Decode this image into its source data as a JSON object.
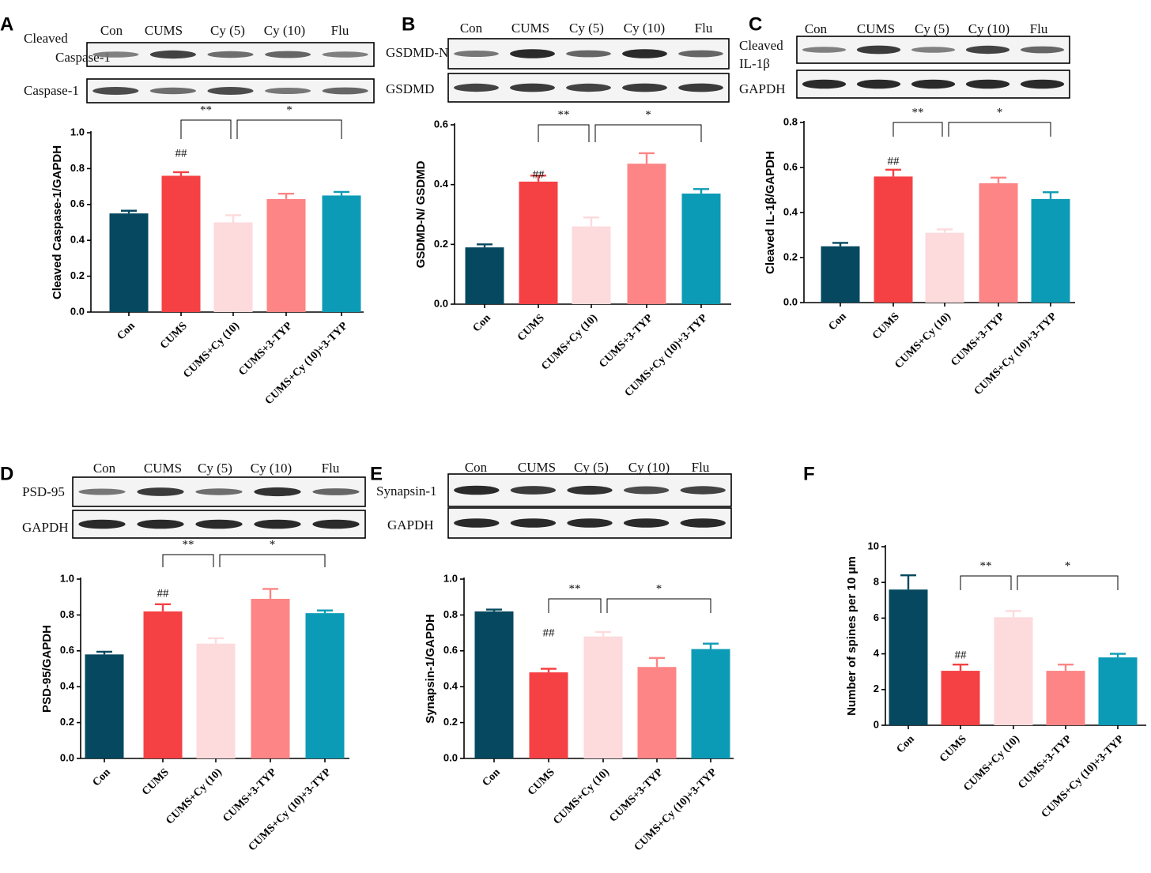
{
  "colors": [
    "#05485f",
    "#f54143",
    "#fddadc",
    "#fd8585",
    "#0c9bb6"
  ],
  "chart_data": [
    {
      "panel": "A",
      "type": "bar",
      "blot": {
        "lanes": [
          "Con",
          "CUMS",
          "Cy (5)",
          "Cy (10)",
          "Flu"
        ],
        "rows": [
          {
            "label": [
              "Cleaved",
              "Caspase-1"
            ],
            "intensity": [
              0.45,
              0.8,
              0.55,
              0.6,
              0.45
            ]
          },
          {
            "label": [
              "Caspase-1"
            ],
            "intensity": [
              0.75,
              0.55,
              0.75,
              0.5,
              0.6
            ]
          }
        ]
      },
      "categories": [
        "Con",
        "CUMS",
        "CUMS+Cy (10)",
        "CUMS+3-TYP",
        "CUMS+Cy (10)+3-TYP"
      ],
      "values": [
        0.55,
        0.76,
        0.5,
        0.63,
        0.65
      ],
      "errors": [
        0.015,
        0.02,
        0.04,
        0.03,
        0.02
      ],
      "ylabel": "Cleaved Caspase-1/GAPDH",
      "ylim": [
        0,
        1.0
      ],
      "yticks": [
        "0.0",
        "0.2",
        "0.4",
        "0.6",
        "0.8",
        "1.0"
      ],
      "hash": "##",
      "sig1": "**",
      "sig2": "*"
    },
    {
      "panel": "B",
      "type": "bar",
      "blot": {
        "lanes": [
          "Con",
          "CUMS",
          "Cy (5)",
          "Cy (10)",
          "Flu"
        ],
        "rows": [
          {
            "label": [
              "GSDMD-N"
            ],
            "intensity": [
              0.5,
              0.95,
              0.6,
              0.95,
              0.6
            ]
          },
          {
            "label": [
              "GSDMD"
            ],
            "intensity": [
              0.8,
              0.85,
              0.8,
              0.85,
              0.85
            ]
          }
        ]
      },
      "categories": [
        "Con",
        "CUMS",
        "CUMS+Cy (10)",
        "CUMS+3-TYP",
        "CUMS+Cy (10)+3-TYP"
      ],
      "values": [
        0.19,
        0.41,
        0.26,
        0.47,
        0.37
      ],
      "errors": [
        0.01,
        0.02,
        0.03,
        0.035,
        0.015
      ],
      "ylabel": "GSDMD-N/ GSDMD",
      "ylim": [
        0,
        0.6
      ],
      "yticks": [
        "0.0",
        "0.2",
        "0.4",
        "0.6"
      ],
      "hash": "##",
      "sig1": "**",
      "sig2": "*"
    },
    {
      "panel": "C",
      "type": "bar",
      "blot": {
        "lanes": [
          "Con",
          "CUMS",
          "Cy (5)",
          "Cy (10)",
          "Flu"
        ],
        "rows": [
          {
            "label": [
              "Cleaved",
              "IL-1β"
            ],
            "intensity": [
              0.45,
              0.85,
              0.45,
              0.8,
              0.6
            ]
          },
          {
            "label": [
              "GAPDH"
            ],
            "intensity": [
              0.95,
              0.95,
              0.95,
              0.95,
              0.95
            ]
          }
        ]
      },
      "categories": [
        "Con",
        "CUMS",
        "CUMS+Cy (10)",
        "CUMS+3-TYP",
        "CUMS+Cy (10)+3-TYP"
      ],
      "values": [
        0.25,
        0.56,
        0.31,
        0.53,
        0.46
      ],
      "errors": [
        0.015,
        0.03,
        0.015,
        0.025,
        0.03
      ],
      "ylabel": "Cleaved IL-1β/GAPDH",
      "ylim": [
        0,
        0.8
      ],
      "yticks": [
        "0.0",
        "0.2",
        "0.4",
        "0.6",
        "0.8"
      ],
      "hash": "##",
      "sig1": "**",
      "sig2": "*"
    },
    {
      "panel": "D",
      "type": "bar",
      "blot": {
        "lanes": [
          "Con",
          "CUMS",
          "Cy (5)",
          "Cy (10)",
          "Flu"
        ],
        "rows": [
          {
            "label": [
              "PSD-95"
            ],
            "intensity": [
              0.5,
              0.85,
              0.55,
              0.9,
              0.6
            ]
          },
          {
            "label": [
              "GAPDH"
            ],
            "intensity": [
              0.95,
              0.95,
              0.95,
              0.95,
              0.95
            ]
          }
        ]
      },
      "categories": [
        "Con",
        "CUMS",
        "CUMS+Cy (10)",
        "CUMS+3-TYP",
        "CUMS+Cy (10)+3-TYP"
      ],
      "values": [
        0.58,
        0.82,
        0.64,
        0.89,
        0.81
      ],
      "errors": [
        0.015,
        0.04,
        0.03,
        0.055,
        0.015
      ],
      "ylabel": "PSD-95/GAPDH",
      "ylim": [
        0,
        1.0
      ],
      "yticks": [
        "0.0",
        "0.2",
        "0.4",
        "0.6",
        "0.8",
        "1.0"
      ],
      "hash": "##",
      "sig1": "**",
      "sig2": "*"
    },
    {
      "panel": "E",
      "type": "bar",
      "blot": {
        "lanes": [
          "Con",
          "CUMS",
          "Cy (5)",
          "Cy (10)",
          "Flu"
        ],
        "rows": [
          {
            "label": [
              "Synapsin-1"
            ],
            "intensity": [
              0.95,
              0.85,
              0.9,
              0.75,
              0.8
            ]
          },
          {
            "label": [
              "GAPDH"
            ],
            "intensity": [
              0.95,
              0.95,
              0.95,
              0.95,
              0.95
            ]
          }
        ]
      },
      "categories": [
        "Con",
        "CUMS",
        "CUMS+Cy (10)",
        "CUMS+3-TYP",
        "CUMS+Cy (10)+3-TYP"
      ],
      "values": [
        0.82,
        0.48,
        0.68,
        0.51,
        0.61
      ],
      "errors": [
        0.01,
        0.02,
        0.025,
        0.05,
        0.03
      ],
      "ylabel": "Synapsin-1/GAPDH",
      "ylim": [
        0,
        1.0
      ],
      "yticks": [
        "0.0",
        "0.2",
        "0.4",
        "0.6",
        "0.8",
        "1.0"
      ],
      "hash": "##",
      "sig1": "**",
      "sig2": "*"
    },
    {
      "panel": "F",
      "type": "bar",
      "categories": [
        "Con",
        "CUMS",
        "CUMS+Cy (10)",
        "CUMS+3-TYP",
        "CUMS+Cy (10)+3-TYP"
      ],
      "values": [
        7.6,
        3.05,
        6.05,
        3.05,
        3.8
      ],
      "errors": [
        0.8,
        0.35,
        0.35,
        0.35,
        0.2
      ],
      "ylabel": "Number of spines per 10 μm",
      "ylim": [
        0,
        10
      ],
      "yticks": [
        "0",
        "2",
        "4",
        "6",
        "8",
        "10"
      ],
      "hash": "##",
      "sig1": "**",
      "sig2": "*"
    }
  ]
}
